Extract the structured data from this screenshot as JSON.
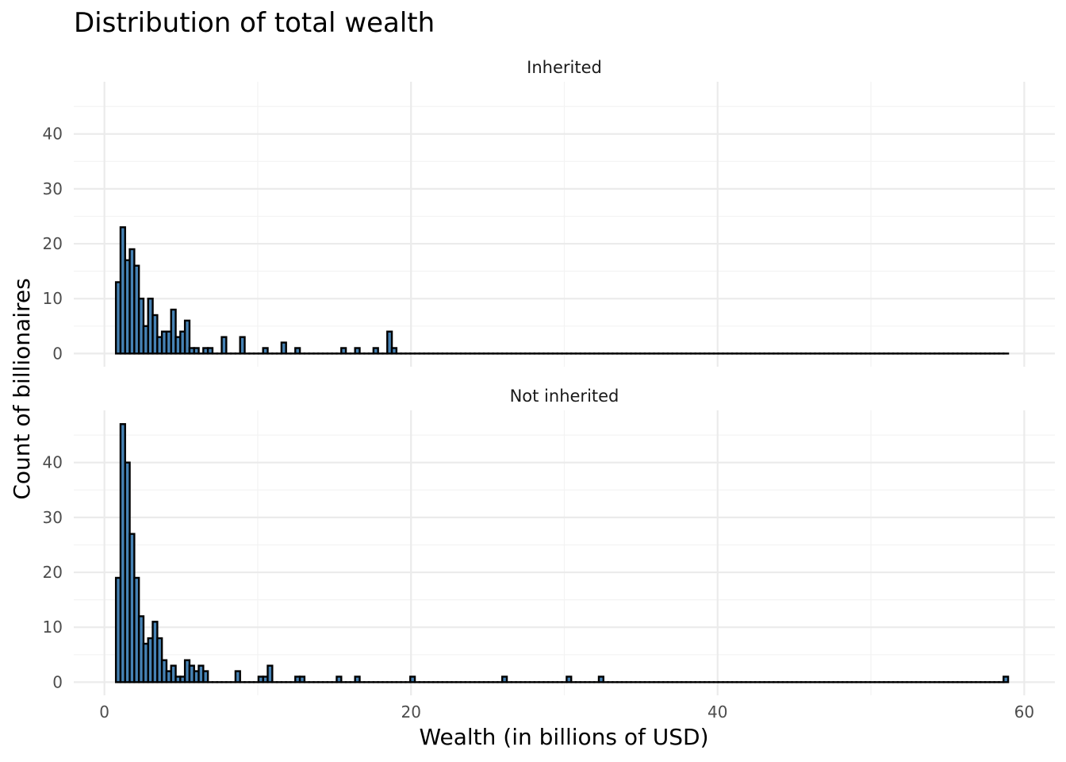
{
  "chart_data": {
    "type": "bar",
    "title": "Distribution of total wealth",
    "xlabel": "Wealth (in billions of USD)",
    "ylabel": "Count of billionaires",
    "xlim": [
      -2,
      62
    ],
    "ylim": [
      -2.4,
      49.5
    ],
    "xticks": [
      0,
      20,
      40,
      60
    ],
    "yticks": [
      0,
      10,
      20,
      30,
      40
    ],
    "grid": true,
    "bin_width": 0.3,
    "bin_start": 0.75,
    "bin_count": 194,
    "bar_fill": "#4682B4",
    "bar_stroke": "#000000",
    "series": [
      {
        "name": "Inherited",
        "bins": [
          {
            "x": 0.9,
            "count": 13
          },
          {
            "x": 1.2,
            "count": 23
          },
          {
            "x": 1.5,
            "count": 17
          },
          {
            "x": 1.8,
            "count": 19
          },
          {
            "x": 2.1,
            "count": 16
          },
          {
            "x": 2.4,
            "count": 10
          },
          {
            "x": 2.7,
            "count": 5
          },
          {
            "x": 3.0,
            "count": 10
          },
          {
            "x": 3.3,
            "count": 7
          },
          {
            "x": 3.6,
            "count": 3
          },
          {
            "x": 3.9,
            "count": 4
          },
          {
            "x": 4.2,
            "count": 4
          },
          {
            "x": 4.5,
            "count": 8
          },
          {
            "x": 4.8,
            "count": 3
          },
          {
            "x": 5.1,
            "count": 4
          },
          {
            "x": 5.4,
            "count": 6
          },
          {
            "x": 5.7,
            "count": 1
          },
          {
            "x": 6.0,
            "count": 1
          },
          {
            "x": 6.6,
            "count": 1
          },
          {
            "x": 6.9,
            "count": 1
          },
          {
            "x": 7.8,
            "count": 3
          },
          {
            "x": 9.0,
            "count": 3
          },
          {
            "x": 10.5,
            "count": 1
          },
          {
            "x": 11.7,
            "count": 2
          },
          {
            "x": 12.6,
            "count": 1
          },
          {
            "x": 15.6,
            "count": 1
          },
          {
            "x": 16.5,
            "count": 1
          },
          {
            "x": 17.7,
            "count": 1
          },
          {
            "x": 18.6,
            "count": 4
          },
          {
            "x": 18.9,
            "count": 1
          }
        ]
      },
      {
        "name": "Not inherited",
        "bins": [
          {
            "x": 0.9,
            "count": 19
          },
          {
            "x": 1.2,
            "count": 47
          },
          {
            "x": 1.5,
            "count": 40
          },
          {
            "x": 1.8,
            "count": 27
          },
          {
            "x": 2.1,
            "count": 19
          },
          {
            "x": 2.4,
            "count": 12
          },
          {
            "x": 2.7,
            "count": 7
          },
          {
            "x": 3.0,
            "count": 8
          },
          {
            "x": 3.3,
            "count": 11
          },
          {
            "x": 3.6,
            "count": 8
          },
          {
            "x": 3.9,
            "count": 4
          },
          {
            "x": 4.2,
            "count": 2
          },
          {
            "x": 4.5,
            "count": 3
          },
          {
            "x": 4.8,
            "count": 1
          },
          {
            "x": 5.1,
            "count": 1
          },
          {
            "x": 5.4,
            "count": 4
          },
          {
            "x": 5.7,
            "count": 3
          },
          {
            "x": 6.0,
            "count": 2
          },
          {
            "x": 6.3,
            "count": 3
          },
          {
            "x": 6.6,
            "count": 2
          },
          {
            "x": 8.7,
            "count": 2
          },
          {
            "x": 10.2,
            "count": 1
          },
          {
            "x": 10.5,
            "count": 1
          },
          {
            "x": 10.8,
            "count": 3
          },
          {
            "x": 12.6,
            "count": 1
          },
          {
            "x": 12.9,
            "count": 1
          },
          {
            "x": 15.3,
            "count": 1
          },
          {
            "x": 16.5,
            "count": 1
          },
          {
            "x": 20.1,
            "count": 1
          },
          {
            "x": 26.1,
            "count": 1
          },
          {
            "x": 30.3,
            "count": 1
          },
          {
            "x": 32.4,
            "count": 1
          },
          {
            "x": 58.8,
            "count": 1
          }
        ]
      }
    ]
  }
}
